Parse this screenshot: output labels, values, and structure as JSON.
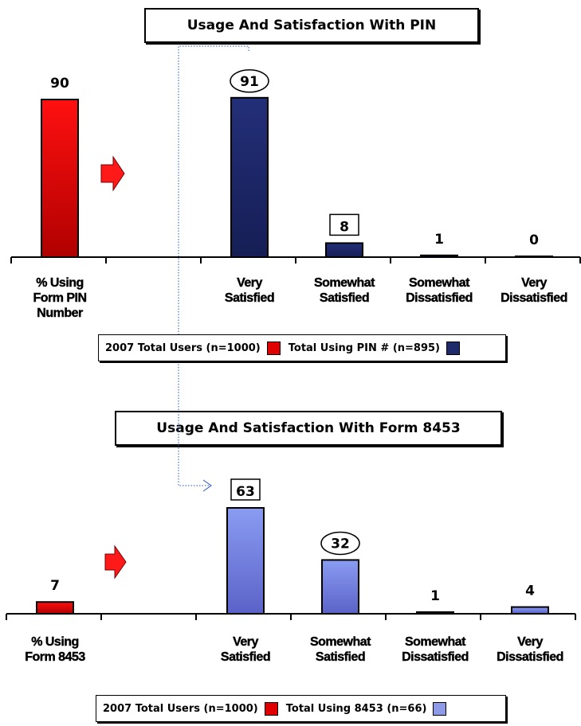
{
  "chart_data": [
    {
      "type": "bar",
      "title": "Usage And Satisfaction With PIN",
      "categories": [
        "% Using Form PIN Number",
        "Very Satisfied",
        "Somewhat Satisfied",
        "Somewhat Dissatisfied",
        "Very Dissatisfied"
      ],
      "category_lines": [
        [
          "% Using",
          "Form PIN",
          "Number"
        ],
        [
          "Very",
          "Satisfied"
        ],
        [
          "Somewhat",
          "Satisfied"
        ],
        [
          "Somewhat",
          "Dissatisfied"
        ],
        [
          "Very",
          "Dissatisfied"
        ]
      ],
      "values": [
        90,
        91,
        8,
        1,
        0
      ],
      "series_colors": [
        "#d80000",
        "#1f2a6b",
        "#1f2a6b",
        "#1f2a6b",
        "#1f2a6b"
      ],
      "value_label_style": [
        "plain",
        "ellipse",
        "box",
        "plain",
        "plain"
      ],
      "legend": [
        {
          "label": "2007 Total Users (n=1000)",
          "color": "#e00000"
        },
        {
          "label": "Total Using PIN # (n=895)",
          "color": "#1f2a6b"
        }
      ]
    },
    {
      "type": "bar",
      "title": "Usage And Satisfaction With Form 8453",
      "categories": [
        "% Using Form 8453",
        "Very Satisfied",
        "Somewhat Satisfied",
        "Somewhat Dissatisfied",
        "Very Dissatisfied"
      ],
      "category_lines": [
        [
          "% Using",
          "Form 8453"
        ],
        [
          "Very",
          "Satisfied"
        ],
        [
          "Somewhat",
          "Satisfied"
        ],
        [
          "Somewhat",
          "Dissatisfied"
        ],
        [
          "Very",
          "Dissatisfied"
        ]
      ],
      "values": [
        7,
        63,
        32,
        1,
        4
      ],
      "series_colors": [
        "#d80000",
        "#7b8ce8",
        "#7b8ce8",
        "#1f2a6b",
        "#7b8ce8"
      ],
      "value_label_style": [
        "plain",
        "box",
        "ellipse",
        "plain",
        "plain"
      ],
      "legend": [
        {
          "label": "2007 Total Users (n=1000)",
          "color": "#e00000"
        },
        {
          "label": "Total Using 8453 (n=66)",
          "color": "#8c9ae8"
        }
      ]
    }
  ]
}
